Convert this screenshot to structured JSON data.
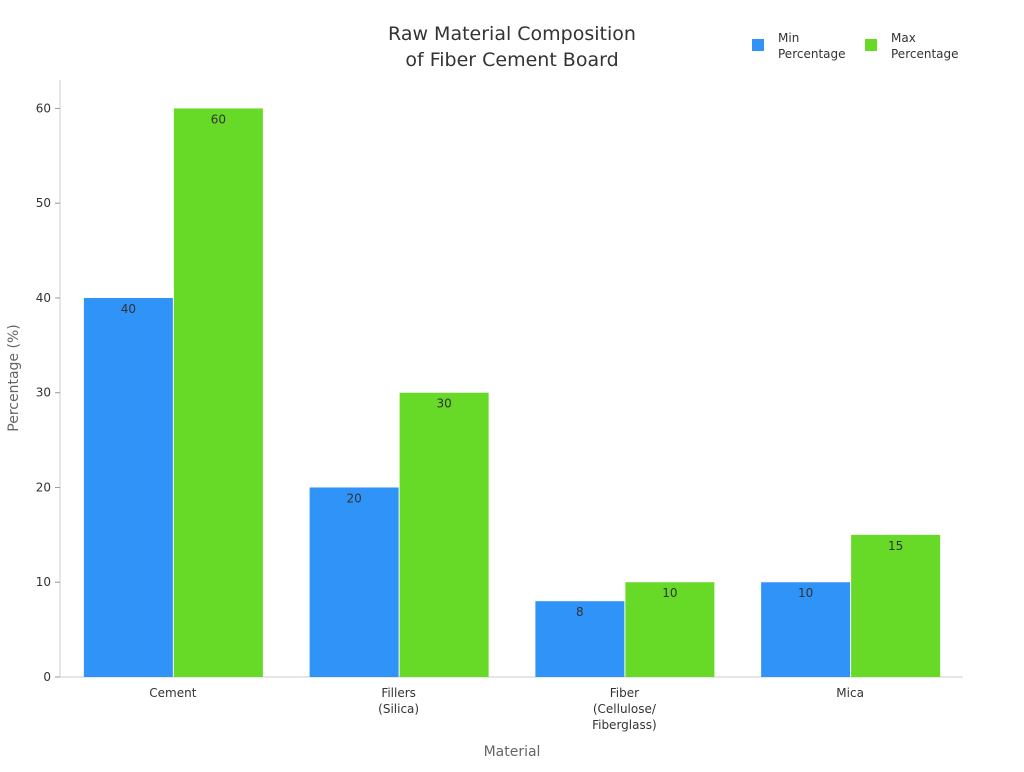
{
  "chart_data": {
    "type": "bar",
    "title_lines": [
      "Raw Material Composition",
      "of Fiber Cement Board"
    ],
    "xlabel": "Material",
    "ylabel": "Percentage (%)",
    "categories": [
      [
        "Cement"
      ],
      [
        "Fillers",
        "(Silica)"
      ],
      [
        "Fiber",
        "(Cellulose/",
        "Fiberglass)"
      ],
      [
        "Mica"
      ]
    ],
    "series": [
      {
        "name_lines": [
          "Min",
          "Percentage"
        ],
        "color": "#2f93f7",
        "values": [
          40,
          20,
          8,
          10
        ]
      },
      {
        "name_lines": [
          "Max",
          "Percentage"
        ],
        "color": "#66da26",
        "values": [
          60,
          30,
          10,
          15
        ]
      }
    ],
    "ylim": [
      0,
      63
    ],
    "yticks": [
      0,
      10,
      20,
      30,
      40,
      50,
      60
    ],
    "grid": false,
    "legend": "top-right",
    "data_labels": true
  }
}
